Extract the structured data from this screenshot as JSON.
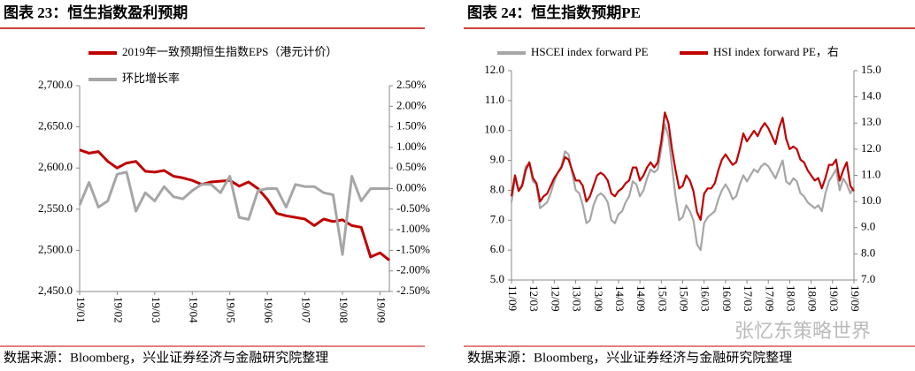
{
  "chart_data": [
    {
      "type": "line",
      "title": "图表 23：恒生指数盈利预期",
      "source": "数据来源：Bloomberg，兴业证券经济与金融研究院整理",
      "categories": [
        "19/01",
        null,
        null,
        null,
        "19/02",
        null,
        null,
        null,
        "19/03",
        null,
        null,
        null,
        "19/04",
        null,
        null,
        null,
        "19/05",
        null,
        null,
        null,
        "19/06",
        null,
        null,
        null,
        "19/07",
        null,
        null,
        null,
        "19/08",
        null,
        null,
        null,
        "19/09",
        null
      ],
      "series": [
        {
          "name": "2019年一致预期恒生指数EPS（港元计价）",
          "color": "#c00000",
          "values": [
            2622,
            2618,
            2620,
            2608,
            2600,
            2606,
            2608,
            2596,
            2595,
            2597,
            2590,
            2588,
            2585,
            2580,
            2583,
            2584,
            2585,
            2578,
            2583,
            2575,
            2562,
            2545,
            2542,
            2540,
            2538,
            2530,
            2538,
            2535,
            2537,
            2530,
            2528,
            2492,
            2497,
            2488
          ]
        },
        {
          "name": "环比增长率",
          "color": "#a6a6a6",
          "axis": "y2",
          "values": [
            -0.4,
            0.15,
            -0.45,
            -0.3,
            0.35,
            0.4,
            -0.55,
            -0.1,
            -0.3,
            0.05,
            -0.2,
            -0.25,
            -0.05,
            0.1,
            0.1,
            -0.1,
            0.3,
            -0.7,
            -0.75,
            -0.05,
            0.0,
            0.0,
            -0.45,
            0.1,
            0.05,
            0.05,
            -0.1,
            -0.15,
            -1.6,
            0.3,
            -0.3,
            0.0,
            0.0,
            0.0
          ]
        }
      ],
      "ylim": [
        2450,
        2700
      ],
      "yticks": [
        {
          "value": 2450,
          "label": "2,450.0"
        },
        {
          "value": 2500,
          "label": "2,500.0"
        },
        {
          "value": 2550,
          "label": "2,550.0"
        },
        {
          "value": 2600,
          "label": "2,600.0"
        },
        {
          "value": 2650,
          "label": "2,650.0"
        },
        {
          "value": 2700,
          "label": "2,700.0"
        }
      ],
      "y2lim": [
        -2.5,
        2.5
      ],
      "y2ticks": [
        {
          "value": -2.5,
          "label": "-2.50%"
        },
        {
          "value": -2,
          "label": "-2.00%"
        },
        {
          "value": -1.5,
          "label": "-1.50%"
        },
        {
          "value": -1,
          "label": "-1.00%"
        },
        {
          "value": -0.5,
          "label": "-0.50%"
        },
        {
          "value": 0,
          "label": "0.00%"
        },
        {
          "value": 0.5,
          "label": "0.50%"
        },
        {
          "value": 1,
          "label": "1.00%"
        },
        {
          "value": 1.5,
          "label": "1.50%"
        },
        {
          "value": 2,
          "label": "2.00%"
        },
        {
          "value": 2.5,
          "label": "2.50%"
        }
      ]
    },
    {
      "type": "line",
      "title": "图表 24：恒生指数预期PE",
      "source": "数据来源：Bloomberg，兴业证券经济与金融研究院整理",
      "categories": [
        "11/09",
        null,
        null,
        null,
        null,
        null,
        "12/03",
        null,
        null,
        null,
        null,
        null,
        "12/09",
        null,
        null,
        null,
        null,
        null,
        "13/03",
        null,
        null,
        null,
        null,
        null,
        "13/09",
        null,
        null,
        null,
        null,
        null,
        "14/03",
        null,
        null,
        null,
        null,
        null,
        "14/09",
        null,
        null,
        null,
        null,
        null,
        "15/03",
        null,
        null,
        null,
        null,
        null,
        "15/09",
        null,
        null,
        null,
        null,
        null,
        "16/03",
        null,
        null,
        null,
        null,
        null,
        "16/09",
        null,
        null,
        null,
        null,
        null,
        "17/03",
        null,
        null,
        null,
        null,
        null,
        "17/09",
        null,
        null,
        null,
        null,
        null,
        "18/03",
        null,
        null,
        null,
        null,
        null,
        "18/09",
        null,
        null,
        null,
        null,
        null,
        "19/03",
        null,
        null,
        null,
        null,
        null,
        "19/09"
      ],
      "series": [
        {
          "name": "HSCEI index forward PE",
          "color": "#a6a6a6",
          "values": [
            7.6,
            8.4,
            8.0,
            8.2,
            8.8,
            8.9,
            8.3,
            8.2,
            7.4,
            7.5,
            7.6,
            7.9,
            8.3,
            8.6,
            8.8,
            9.3,
            9.2,
            8.6,
            8.0,
            7.9,
            7.5,
            6.9,
            7.0,
            7.5,
            7.8,
            7.9,
            7.8,
            7.6,
            7.0,
            6.9,
            7.2,
            7.3,
            7.6,
            7.8,
            8.3,
            8.2,
            7.8,
            8.0,
            8.4,
            8.7,
            8.6,
            8.7,
            9.4,
            10.2,
            9.8,
            8.8,
            7.8,
            7.0,
            7.1,
            7.5,
            7.3,
            7.0,
            6.2,
            6.0,
            6.9,
            7.1,
            7.2,
            7.3,
            7.7,
            8.0,
            8.2,
            8.0,
            7.7,
            7.8,
            8.2,
            8.5,
            8.3,
            8.5,
            8.7,
            8.6,
            8.8,
            8.9,
            8.8,
            8.6,
            8.4,
            8.7,
            9.0,
            8.3,
            8.2,
            8.4,
            8.3,
            7.9,
            7.8,
            7.6,
            7.5,
            7.4,
            7.5,
            7.3,
            7.9,
            8.3,
            8.5,
            8.7,
            8.0,
            8.4,
            8.2,
            7.9,
            8.1
          ]
        },
        {
          "name": "HSI index forward PE，右",
          "color": "#c00000",
          "axis": "y2",
          "values": [
            10.2,
            11.0,
            10.4,
            10.6,
            11.2,
            11.5,
            10.9,
            10.7,
            10.0,
            10.2,
            10.3,
            10.6,
            10.9,
            11.1,
            11.3,
            11.7,
            11.6,
            11.2,
            10.8,
            10.8,
            10.6,
            10.0,
            10.2,
            10.6,
            11.0,
            11.1,
            11.0,
            10.8,
            10.3,
            10.2,
            10.4,
            10.5,
            10.7,
            10.8,
            11.3,
            11.3,
            10.8,
            11.0,
            11.3,
            11.5,
            11.3,
            11.5,
            12.3,
            13.4,
            13.0,
            12.0,
            11.2,
            10.5,
            10.6,
            11.0,
            10.8,
            10.4,
            9.6,
            9.3,
            10.3,
            10.5,
            10.5,
            10.7,
            11.2,
            11.6,
            11.8,
            11.6,
            11.4,
            11.5,
            12.0,
            12.6,
            12.3,
            12.5,
            12.7,
            12.5,
            12.8,
            13.0,
            12.8,
            12.5,
            12.2,
            12.8,
            13.2,
            12.4,
            12.0,
            12.1,
            12.0,
            11.6,
            11.5,
            11.2,
            11.0,
            10.8,
            10.9,
            10.5,
            10.9,
            11.4,
            11.4,
            11.6,
            10.8,
            11.2,
            11.5,
            10.6,
            10.4
          ]
        }
      ],
      "ylim": [
        5,
        12
      ],
      "yticks": [
        {
          "value": 5,
          "label": "5.0"
        },
        {
          "value": 6,
          "label": "6.0"
        },
        {
          "value": 7,
          "label": "7.0"
        },
        {
          "value": 8,
          "label": "8.0"
        },
        {
          "value": 9,
          "label": "9.0"
        },
        {
          "value": 10,
          "label": "10.0"
        },
        {
          "value": 11,
          "label": "11.0"
        },
        {
          "value": 12,
          "label": "12.0"
        }
      ],
      "y2lim": [
        7,
        15
      ],
      "y2ticks": [
        {
          "value": 7,
          "label": "7.0"
        },
        {
          "value": 8,
          "label": "8.0"
        },
        {
          "value": 9,
          "label": "9.0"
        },
        {
          "value": 10,
          "label": "10.0"
        },
        {
          "value": 11,
          "label": "11.0"
        },
        {
          "value": 12,
          "label": "12.0"
        },
        {
          "value": 13,
          "label": "13.0"
        },
        {
          "value": 14,
          "label": "14.0"
        },
        {
          "value": 15,
          "label": "15.0"
        }
      ]
    }
  ],
  "watermark": "张忆东策略世界"
}
